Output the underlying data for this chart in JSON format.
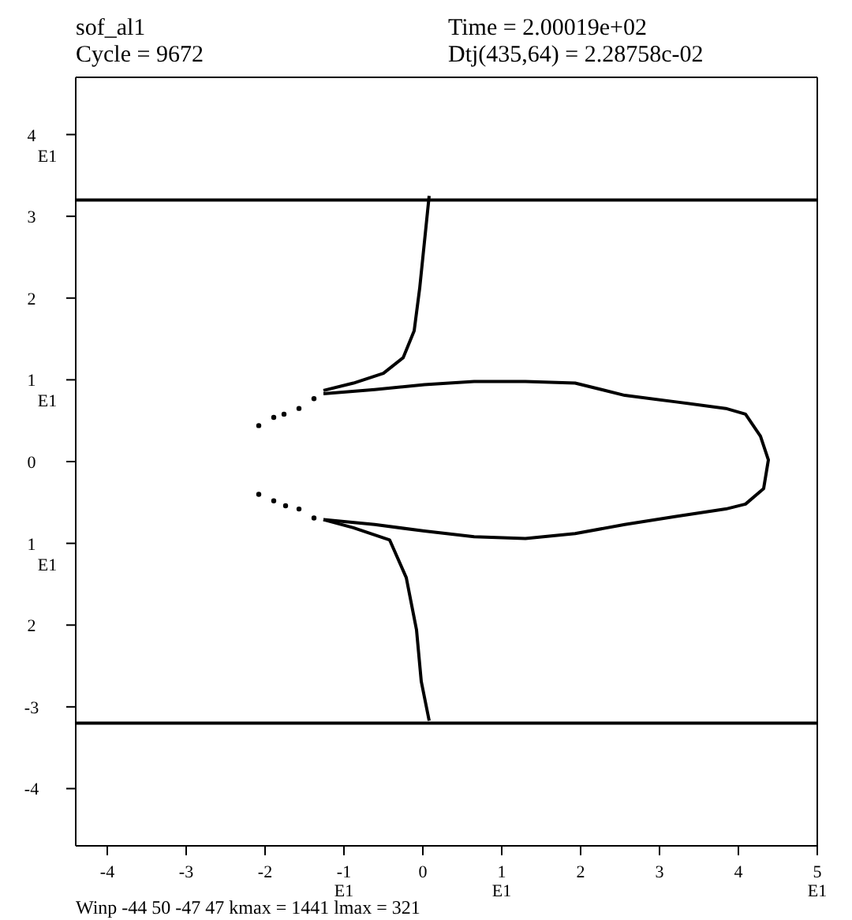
{
  "chart_data": {
    "type": "line",
    "title": "sof_al1",
    "subtitle": "Cycle = 9672",
    "annotations": [
      "Time = 2.00019e+02",
      "Dtj(435,64) = 2.28758c-02",
      "Winp -44 50 -47 47 kmax = 1441 lmax = 321"
    ],
    "xlim": [
      -4.4,
      5.0
    ],
    "ylim": [
      -4.7,
      4.7
    ],
    "xticks": [
      -4,
      -3,
      -2,
      {
        "value": -1,
        "label": "-1\nE1"
      },
      0,
      {
        "value": 1,
        "label": "1\nE1"
      },
      2,
      3,
      4,
      {
        "value": 5,
        "label": "5\nE1"
      }
    ],
    "yticks": [
      {
        "value": 4,
        "label": "4\nE1"
      },
      3,
      2,
      {
        "value": 1,
        "label": "1\nE1"
      },
      0,
      {
        "value": -1,
        "label": "1\nE1"
      },
      {
        "value": -2,
        "label": "2"
      },
      -3,
      -4
    ],
    "marker": "none",
    "line_style": "solid",
    "ref_lines": [
      {
        "axis": "y",
        "value": 3.2,
        "color": "#000000"
      },
      {
        "axis": "y",
        "value": -3.2,
        "color": "#000000"
      }
    ],
    "series": [
      {
        "color": "#000000",
        "x": [
          0.08,
          -0.04,
          -0.11,
          -0.25,
          -0.5,
          -0.88,
          -1.26
        ],
        "values": [
          3.25,
          2.12,
          1.6,
          1.27,
          1.08,
          0.96,
          0.87
        ]
      },
      {
        "color": "#000000",
        "x": [
          -1.26,
          -0.61,
          0.02,
          0.65,
          1.3,
          1.93,
          2.56,
          3.21,
          3.84,
          4.09,
          4.28,
          4.38,
          4.32,
          4.09,
          3.84,
          3.21,
          2.56,
          1.93,
          1.3,
          0.65,
          0.02,
          -0.61,
          -1.26
        ],
        "values": [
          0.83,
          0.88,
          0.94,
          0.98,
          0.98,
          0.96,
          0.81,
          0.73,
          0.65,
          0.58,
          0.31,
          0.02,
          -0.33,
          -0.52,
          -0.58,
          -0.67,
          -0.77,
          -0.88,
          -0.94,
          -0.92,
          -0.85,
          -0.77,
          -0.71
        ]
      },
      {
        "color": "#000000",
        "x": [
          -1.26,
          -0.88,
          -0.42,
          -0.21,
          -0.08,
          -0.02,
          0.08
        ],
        "values": [
          -0.71,
          -0.81,
          -0.96,
          -1.42,
          -2.06,
          -2.69,
          -3.17
        ]
      },
      {
        "type": "scatter",
        "marker": "circle",
        "color": "#000000",
        "x": [
          -2.08,
          -1.89,
          -1.76,
          -1.57,
          -1.38,
          -2.08,
          -1.89,
          -1.74,
          -1.57,
          -1.38
        ],
        "values": [
          0.44,
          0.54,
          0.58,
          0.65,
          0.77,
          -0.4,
          -0.48,
          -0.54,
          -0.58,
          -0.69
        ]
      }
    ]
  }
}
